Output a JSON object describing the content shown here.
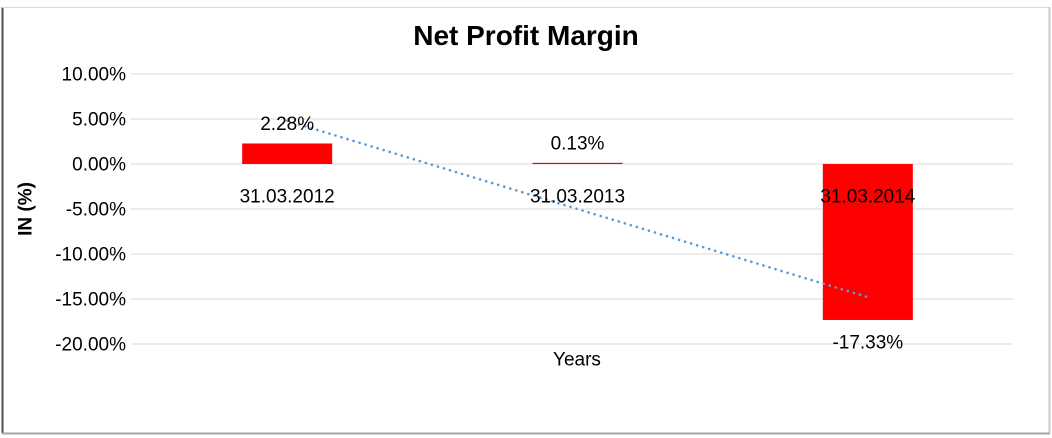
{
  "chart_data": {
    "type": "bar",
    "title": "Net Profit Margin",
    "xlabel": "Years",
    "ylabel": "IN (%)",
    "categories": [
      "31.03.2012",
      "31.03.2013",
      "31.03.2014"
    ],
    "values": [
      2.28,
      0.13,
      -17.33
    ],
    "data_labels": [
      "2.28%",
      "0.13%",
      "-17.33%"
    ],
    "y_ticks": [
      {
        "label": "10.00%",
        "value": 10
      },
      {
        "label": "5.00%",
        "value": 5
      },
      {
        "label": "0.00%",
        "value": 0
      },
      {
        "label": "-5.00%",
        "value": -5
      },
      {
        "label": "-10.00%",
        "value": -10
      },
      {
        "label": "-15.00%",
        "value": -15
      },
      {
        "label": "-20.00%",
        "value": -20
      }
    ],
    "ylim": [
      -20,
      10
    ],
    "grid": true,
    "legend": "none",
    "bar_color": "#FF0000",
    "gridline_color": "#D9D9D9",
    "text_color": "#000000",
    "trendline": {
      "type": "linear",
      "style": "dotted",
      "color": "#5B9BD5",
      "start_value": 4.8,
      "end_value": -14.8
    }
  }
}
